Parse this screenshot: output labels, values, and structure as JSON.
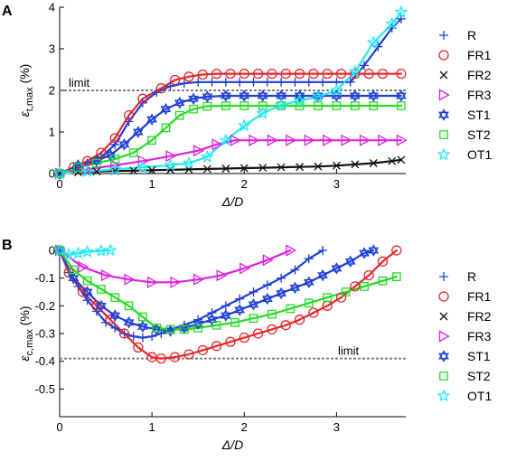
{
  "chart_data": [
    {
      "panel_label": "A",
      "type": "line",
      "ylabel_main": "ε",
      "ylabel_sub": "t,max",
      "ylabel_unit": " (%)",
      "xlabel_main": "Δ/",
      "xlabel_italic": "D",
      "xlim": [
        0,
        3.75
      ],
      "ylim": [
        0,
        4
      ],
      "xticks": [
        0,
        1,
        2,
        3
      ],
      "yticks": [
        0,
        1,
        2,
        3,
        4
      ],
      "xtick_labels": [
        "0",
        "1",
        "2",
        "3"
      ],
      "ytick_labels": [
        "0",
        "1",
        "2",
        "3",
        "4"
      ],
      "limit": {
        "y": 2,
        "label": "limit"
      },
      "series": [
        {
          "name": "R",
          "color": "#1f3fd6",
          "marker": "plus",
          "x": [
            0,
            0.15,
            0.3,
            0.45,
            0.6,
            0.75,
            0.9,
            1.05,
            1.2,
            1.35,
            1.5,
            1.65,
            1.8,
            1.95,
            2.1,
            2.25,
            2.4,
            2.55,
            2.7,
            2.85,
            3.0,
            3.15,
            3.3,
            3.45,
            3.6,
            3.7
          ],
          "y": [
            0,
            0.12,
            0.25,
            0.4,
            0.7,
            1.25,
            1.7,
            1.95,
            2.1,
            2.17,
            2.2,
            2.2,
            2.2,
            2.2,
            2.2,
            2.2,
            2.2,
            2.2,
            2.2,
            2.2,
            2.2,
            2.2,
            2.6,
            3.05,
            3.5,
            3.72
          ]
        },
        {
          "name": "FR1",
          "color": "#e8262c",
          "marker": "circle",
          "x": [
            0,
            0.15,
            0.3,
            0.45,
            0.6,
            0.75,
            0.9,
            1.1,
            1.25,
            1.4,
            1.55,
            1.7,
            1.85,
            2.0,
            2.15,
            2.3,
            2.45,
            2.6,
            2.75,
            2.9,
            3.05,
            3.2,
            3.35,
            3.5,
            3.7
          ],
          "y": [
            0,
            0.15,
            0.3,
            0.5,
            0.85,
            1.4,
            1.8,
            2.05,
            2.25,
            2.33,
            2.38,
            2.4,
            2.4,
            2.4,
            2.4,
            2.4,
            2.4,
            2.4,
            2.4,
            2.4,
            2.4,
            2.4,
            2.4,
            2.4,
            2.4
          ]
        },
        {
          "name": "FR2",
          "color": "#111111",
          "marker": "x",
          "x": [
            0,
            0.2,
            0.4,
            0.6,
            0.8,
            1.0,
            1.2,
            1.4,
            1.6,
            1.8,
            2.0,
            2.2,
            2.4,
            2.6,
            2.8,
            3.0,
            3.2,
            3.4,
            3.6,
            3.7
          ],
          "y": [
            0,
            0.03,
            0.05,
            0.06,
            0.07,
            0.08,
            0.09,
            0.1,
            0.11,
            0.12,
            0.13,
            0.14,
            0.15,
            0.16,
            0.17,
            0.19,
            0.22,
            0.25,
            0.3,
            0.33
          ]
        },
        {
          "name": "FR3",
          "color": "#e020e0",
          "marker": "triangle-right",
          "x": [
            0,
            0.3,
            0.6,
            0.9,
            1.2,
            1.5,
            1.7,
            1.9,
            2.1,
            2.3,
            2.5,
            2.7,
            2.9,
            3.1,
            3.3,
            3.5,
            3.7
          ],
          "y": [
            0,
            0.1,
            0.2,
            0.3,
            0.42,
            0.55,
            0.7,
            0.8,
            0.8,
            0.8,
            0.8,
            0.8,
            0.8,
            0.8,
            0.8,
            0.8,
            0.8
          ]
        },
        {
          "name": "ST1",
          "color": "#1f3fd6",
          "marker": "hexagram",
          "x": [
            0,
            0.2,
            0.4,
            0.55,
            0.7,
            0.85,
            1.0,
            1.15,
            1.3,
            1.45,
            1.6,
            1.8,
            2.0,
            2.2,
            2.4,
            2.6,
            2.8,
            3.0,
            3.2,
            3.4,
            3.7
          ],
          "y": [
            0,
            0.2,
            0.3,
            0.45,
            0.7,
            1.0,
            1.3,
            1.55,
            1.7,
            1.8,
            1.85,
            1.87,
            1.87,
            1.87,
            1.87,
            1.87,
            1.87,
            1.87,
            1.87,
            1.87,
            1.87
          ]
        },
        {
          "name": "ST2",
          "color": "#22dd22",
          "marker": "square",
          "x": [
            0,
            0.2,
            0.4,
            0.6,
            0.8,
            1.0,
            1.15,
            1.3,
            1.45,
            1.6,
            1.8,
            2.0,
            2.2,
            2.4,
            2.6,
            2.8,
            3.0,
            3.2,
            3.4,
            3.7
          ],
          "y": [
            0,
            0.15,
            0.25,
            0.35,
            0.5,
            0.8,
            1.1,
            1.4,
            1.55,
            1.62,
            1.63,
            1.63,
            1.63,
            1.63,
            1.63,
            1.63,
            1.63,
            1.63,
            1.63,
            1.63
          ]
        },
        {
          "name": "OT1",
          "color": "#22e8f2",
          "marker": "star",
          "x": [
            0,
            0.3,
            0.6,
            0.9,
            1.2,
            1.4,
            1.6,
            1.8,
            2.0,
            2.2,
            2.4,
            2.6,
            2.8,
            3.0,
            3.2,
            3.4,
            3.6,
            3.7
          ],
          "y": [
            0,
            0.05,
            0.1,
            0.15,
            0.2,
            0.25,
            0.4,
            0.8,
            1.15,
            1.45,
            1.65,
            1.75,
            1.85,
            2.0,
            2.45,
            3.15,
            3.6,
            3.88
          ]
        }
      ]
    },
    {
      "panel_label": "B",
      "type": "line",
      "ylabel_main": "ε",
      "ylabel_sub": "c,max",
      "ylabel_unit": " (%)",
      "xlabel_main": "Δ/",
      "xlabel_italic": "D",
      "xlim": [
        0,
        3.75
      ],
      "ylim": [
        -0.6,
        0
      ],
      "xticks": [
        0,
        1,
        2,
        3
      ],
      "yticks": [
        0,
        -0.1,
        -0.2,
        -0.3,
        -0.4,
        -0.5
      ],
      "xtick_labels": [
        "0",
        "1",
        "2",
        "3"
      ],
      "ytick_labels": [
        "0",
        "-0.1",
        "-0.2",
        "-0.3",
        "-0.4",
        "-0.5"
      ],
      "limit": {
        "y": -0.39,
        "label": "limit"
      },
      "series": [
        {
          "name": "R",
          "color": "#1f3fd6",
          "marker": "plus",
          "x": [
            0,
            0.1,
            0.2,
            0.3,
            0.4,
            0.5,
            0.6,
            0.7,
            0.8,
            0.9,
            1.0,
            1.1,
            1.2,
            1.35,
            1.5,
            1.65,
            1.8,
            1.95,
            2.1,
            2.25,
            2.4,
            2.55,
            2.7,
            2.85
          ],
          "y": [
            0,
            -0.08,
            -0.13,
            -0.18,
            -0.22,
            -0.26,
            -0.28,
            -0.3,
            -0.31,
            -0.315,
            -0.31,
            -0.3,
            -0.285,
            -0.27,
            -0.25,
            -0.225,
            -0.2,
            -0.175,
            -0.15,
            -0.125,
            -0.1,
            -0.07,
            -0.03,
            0
          ]
        },
        {
          "name": "FR1",
          "color": "#e8262c",
          "marker": "circle",
          "x": [
            0,
            0.1,
            0.25,
            0.4,
            0.55,
            0.7,
            0.85,
            1.0,
            1.1,
            1.25,
            1.4,
            1.55,
            1.7,
            1.85,
            2.0,
            2.15,
            2.3,
            2.45,
            2.6,
            2.75,
            2.9,
            3.05,
            3.2,
            3.35,
            3.5,
            3.65
          ],
          "y": [
            0,
            -0.08,
            -0.15,
            -0.2,
            -0.25,
            -0.3,
            -0.35,
            -0.385,
            -0.39,
            -0.385,
            -0.375,
            -0.36,
            -0.345,
            -0.33,
            -0.315,
            -0.3,
            -0.285,
            -0.27,
            -0.25,
            -0.225,
            -0.2,
            -0.17,
            -0.13,
            -0.09,
            -0.04,
            0
          ]
        },
        {
          "name": "FR3",
          "color": "#e020e0",
          "marker": "triangle-right",
          "x": [
            0,
            0.25,
            0.5,
            0.75,
            1.0,
            1.25,
            1.5,
            1.75,
            2.0,
            2.25,
            2.5
          ],
          "y": [
            0,
            -0.06,
            -0.09,
            -0.105,
            -0.115,
            -0.115,
            -0.105,
            -0.09,
            -0.065,
            -0.035,
            0
          ]
        },
        {
          "name": "ST1",
          "color": "#1f3fd6",
          "marker": "hexagram",
          "x": [
            0,
            0.15,
            0.3,
            0.45,
            0.6,
            0.75,
            0.9,
            1.05,
            1.2,
            1.35,
            1.5,
            1.65,
            1.8,
            1.95,
            2.1,
            2.25,
            2.4,
            2.55,
            2.7,
            2.85,
            3.0,
            3.15,
            3.3,
            3.4
          ],
          "y": [
            0,
            -0.1,
            -0.15,
            -0.2,
            -0.235,
            -0.26,
            -0.275,
            -0.285,
            -0.29,
            -0.28,
            -0.265,
            -0.25,
            -0.235,
            -0.215,
            -0.195,
            -0.175,
            -0.155,
            -0.135,
            -0.115,
            -0.09,
            -0.065,
            -0.04,
            -0.01,
            0
          ]
        },
        {
          "name": "ST2",
          "color": "#22dd22",
          "marker": "square",
          "x": [
            0,
            0.15,
            0.3,
            0.45,
            0.6,
            0.75,
            0.9,
            1.05,
            1.2,
            1.35,
            1.5,
            1.7,
            1.9,
            2.1,
            2.3,
            2.5,
            2.7,
            2.9,
            3.1,
            3.3,
            3.5,
            3.65
          ],
          "y": [
            0,
            -0.07,
            -0.11,
            -0.14,
            -0.17,
            -0.2,
            -0.24,
            -0.28,
            -0.285,
            -0.285,
            -0.28,
            -0.27,
            -0.26,
            -0.245,
            -0.23,
            -0.21,
            -0.19,
            -0.17,
            -0.15,
            -0.13,
            -0.11,
            -0.095
          ]
        },
        {
          "name": "OT1",
          "color": "#22e8f2",
          "marker": "star",
          "x": [
            0,
            0.1,
            0.2,
            0.3,
            0.45,
            0.55
          ],
          "y": [
            0,
            -0.015,
            -0.01,
            -0.005,
            -0.002,
            0
          ]
        }
      ]
    }
  ],
  "legend": {
    "items": [
      {
        "name": "R",
        "color": "#1f3fd6",
        "marker": "plus"
      },
      {
        "name": "FR1",
        "color": "#e8262c",
        "marker": "circle"
      },
      {
        "name": "FR2",
        "color": "#111111",
        "marker": "x"
      },
      {
        "name": "FR3",
        "color": "#e020e0",
        "marker": "triangle-right"
      },
      {
        "name": "ST1",
        "color": "#1f3fd6",
        "marker": "hexagram"
      },
      {
        "name": "ST2",
        "color": "#22dd22",
        "marker": "square"
      },
      {
        "name": "OT1",
        "color": "#22e8f2",
        "marker": "star"
      }
    ]
  }
}
